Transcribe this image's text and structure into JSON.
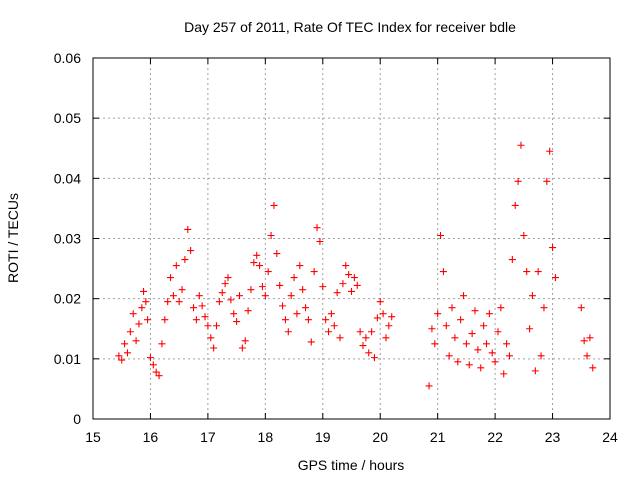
{
  "chart_data": {
    "type": "scatter",
    "title": "Day 257 of 2011, Rate Of TEC Index for receiver bdle",
    "xlabel": "GPS time / hours",
    "ylabel": "ROTI / TECUs",
    "xlim": [
      15,
      24
    ],
    "ylim": [
      0,
      0.06
    ],
    "xticks": [
      "15",
      "16",
      "17",
      "18",
      "19",
      "20",
      "21",
      "22",
      "23",
      "24"
    ],
    "yticks": [
      "0",
      "0.01",
      "0.02",
      "0.03",
      "0.04",
      "0.05",
      "0.06"
    ],
    "grid": true,
    "marker": "+",
    "color": "#ff0000",
    "series": [
      {
        "name": "ROTI",
        "points": [
          [
            15.45,
            0.0105
          ],
          [
            15.5,
            0.0098
          ],
          [
            15.55,
            0.0125
          ],
          [
            15.6,
            0.011
          ],
          [
            15.65,
            0.0145
          ],
          [
            15.7,
            0.0175
          ],
          [
            15.75,
            0.013
          ],
          [
            15.8,
            0.0158
          ],
          [
            15.85,
            0.0185
          ],
          [
            15.88,
            0.0212
          ],
          [
            15.92,
            0.0195
          ],
          [
            15.95,
            0.0165
          ],
          [
            16.0,
            0.0102
          ],
          [
            16.05,
            0.009
          ],
          [
            16.1,
            0.0078
          ],
          [
            16.15,
            0.0072
          ],
          [
            16.2,
            0.0125
          ],
          [
            16.25,
            0.0165
          ],
          [
            16.3,
            0.0195
          ],
          [
            16.35,
            0.0235
          ],
          [
            16.4,
            0.0205
          ],
          [
            16.45,
            0.0255
          ],
          [
            16.5,
            0.0195
          ],
          [
            16.55,
            0.0215
          ],
          [
            16.6,
            0.0265
          ],
          [
            16.65,
            0.0315
          ],
          [
            16.7,
            0.028
          ],
          [
            16.75,
            0.0185
          ],
          [
            16.8,
            0.0165
          ],
          [
            16.85,
            0.0205
          ],
          [
            16.9,
            0.0188
          ],
          [
            16.95,
            0.017
          ],
          [
            17.0,
            0.0155
          ],
          [
            17.05,
            0.0135
          ],
          [
            17.1,
            0.0118
          ],
          [
            17.15,
            0.0155
          ],
          [
            17.2,
            0.0195
          ],
          [
            17.25,
            0.021
          ],
          [
            17.3,
            0.0225
          ],
          [
            17.35,
            0.0235
          ],
          [
            17.4,
            0.0198
          ],
          [
            17.45,
            0.0175
          ],
          [
            17.5,
            0.0162
          ],
          [
            17.55,
            0.0205
          ],
          [
            17.6,
            0.0118
          ],
          [
            17.65,
            0.013
          ],
          [
            17.7,
            0.018
          ],
          [
            17.75,
            0.0215
          ],
          [
            17.8,
            0.026
          ],
          [
            17.85,
            0.0272
          ],
          [
            17.9,
            0.0255
          ],
          [
            17.95,
            0.022
          ],
          [
            18.0,
            0.0205
          ],
          [
            18.05,
            0.0245
          ],
          [
            18.1,
            0.0305
          ],
          [
            18.15,
            0.0355
          ],
          [
            18.2,
            0.0275
          ],
          [
            18.25,
            0.0222
          ],
          [
            18.3,
            0.0188
          ],
          [
            18.35,
            0.0165
          ],
          [
            18.4,
            0.0145
          ],
          [
            18.45,
            0.0205
          ],
          [
            18.5,
            0.0235
          ],
          [
            18.55,
            0.0175
          ],
          [
            18.6,
            0.0255
          ],
          [
            18.65,
            0.0215
          ],
          [
            18.7,
            0.0185
          ],
          [
            18.75,
            0.0165
          ],
          [
            18.8,
            0.0128
          ],
          [
            18.85,
            0.0245
          ],
          [
            18.9,
            0.0318
          ],
          [
            18.95,
            0.0295
          ],
          [
            19.0,
            0.022
          ],
          [
            19.05,
            0.0165
          ],
          [
            19.1,
            0.0145
          ],
          [
            19.15,
            0.0175
          ],
          [
            19.2,
            0.0155
          ],
          [
            19.25,
            0.021
          ],
          [
            19.3,
            0.0135
          ],
          [
            19.35,
            0.0225
          ],
          [
            19.4,
            0.0255
          ],
          [
            19.45,
            0.024
          ],
          [
            19.5,
            0.0212
          ],
          [
            19.55,
            0.0235
          ],
          [
            19.6,
            0.0222
          ],
          [
            19.65,
            0.0145
          ],
          [
            19.7,
            0.0122
          ],
          [
            19.75,
            0.0135
          ],
          [
            19.8,
            0.011
          ],
          [
            19.85,
            0.0145
          ],
          [
            19.9,
            0.0102
          ],
          [
            19.95,
            0.0168
          ],
          [
            20.0,
            0.0195
          ],
          [
            20.05,
            0.0175
          ],
          [
            20.1,
            0.0135
          ],
          [
            20.15,
            0.0155
          ],
          [
            20.2,
            0.017
          ],
          [
            20.85,
            0.0055
          ],
          [
            20.9,
            0.015
          ],
          [
            20.95,
            0.0125
          ],
          [
            21.0,
            0.0175
          ],
          [
            21.05,
            0.0305
          ],
          [
            21.1,
            0.0245
          ],
          [
            21.15,
            0.0155
          ],
          [
            21.2,
            0.0105
          ],
          [
            21.25,
            0.0185
          ],
          [
            21.3,
            0.0135
          ],
          [
            21.35,
            0.0095
          ],
          [
            21.4,
            0.0165
          ],
          [
            21.45,
            0.0205
          ],
          [
            21.5,
            0.0125
          ],
          [
            21.55,
            0.009
          ],
          [
            21.6,
            0.0142
          ],
          [
            21.65,
            0.018
          ],
          [
            21.7,
            0.0115
          ],
          [
            21.75,
            0.0085
          ],
          [
            21.8,
            0.0155
          ],
          [
            21.85,
            0.0125
          ],
          [
            21.9,
            0.0175
          ],
          [
            21.95,
            0.011
          ],
          [
            22.0,
            0.0095
          ],
          [
            22.05,
            0.0145
          ],
          [
            22.1,
            0.0185
          ],
          [
            22.15,
            0.0075
          ],
          [
            22.2,
            0.0125
          ],
          [
            22.25,
            0.0105
          ],
          [
            22.3,
            0.0265
          ],
          [
            22.35,
            0.0355
          ],
          [
            22.4,
            0.0395
          ],
          [
            22.45,
            0.0455
          ],
          [
            22.5,
            0.0305
          ],
          [
            22.55,
            0.0245
          ],
          [
            22.6,
            0.015
          ],
          [
            22.65,
            0.0205
          ],
          [
            22.7,
            0.008
          ],
          [
            22.75,
            0.0245
          ],
          [
            22.8,
            0.0105
          ],
          [
            22.85,
            0.0185
          ],
          [
            22.9,
            0.0395
          ],
          [
            22.95,
            0.0445
          ],
          [
            23.0,
            0.0285
          ],
          [
            23.05,
            0.0235
          ],
          [
            23.5,
            0.0185
          ],
          [
            23.55,
            0.013
          ],
          [
            23.6,
            0.0105
          ],
          [
            23.65,
            0.0135
          ],
          [
            23.7,
            0.0085
          ]
        ]
      }
    ]
  }
}
